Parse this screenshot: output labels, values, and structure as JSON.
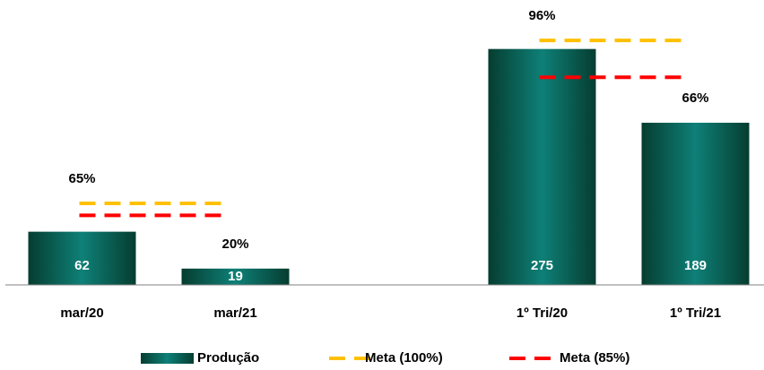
{
  "chart_data": {
    "type": "bar",
    "categories": [
      "mar/20",
      "mar/21",
      null,
      "1º Tri/20",
      "1º Tri/21"
    ],
    "series": [
      {
        "name": "Produção",
        "color": "#0e8078",
        "values": [
          62,
          19,
          null,
          275,
          189
        ]
      },
      {
        "name": "Meta (100%)",
        "color": "#ffc000",
        "type": "line",
        "dashed": true,
        "values": [
          95,
          null,
          null,
          285,
          null
        ]
      },
      {
        "name": "Meta (85%)",
        "color": "#ff0000",
        "type": "line",
        "dashed": true,
        "values": [
          81,
          null,
          null,
          242,
          null
        ]
      }
    ],
    "achievement": {
      "values": [
        65,
        20,
        null,
        96,
        66
      ],
      "value_labels": [
        "65%",
        "20%",
        null,
        "96%",
        "66%"
      ]
    },
    "ylim": [
      0,
      330
    ],
    "legend": "bottom"
  }
}
